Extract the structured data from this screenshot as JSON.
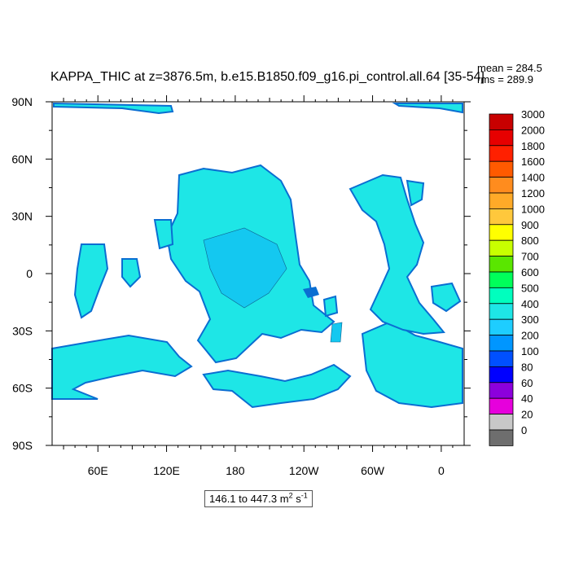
{
  "title": "KAPPA_THIC at z=3876.5m, b.e15.B1850.f09_g16.pi_control.all.64 [35-54]",
  "stats": {
    "mean": "mean = 284.5",
    "rms": "rms = 289.9"
  },
  "lat_labels": [
    "90N",
    "60N",
    "30N",
    "0",
    "30S",
    "60S",
    "90S"
  ],
  "lon_labels": [
    "60E",
    "120E",
    "180",
    "120W",
    "60W",
    "0"
  ],
  "colorbar": {
    "labels": [
      "3000",
      "2000",
      "1800",
      "1600",
      "1400",
      "1200",
      "1000",
      "900",
      "800",
      "700",
      "600",
      "500",
      "400",
      "300",
      "200",
      "100",
      "80",
      "60",
      "40",
      "20",
      "0"
    ],
    "colors": [
      "#c80000",
      "#e60000",
      "#ff2000",
      "#ff5a00",
      "#ff8c1e",
      "#ffaa28",
      "#ffc83c",
      "#ffff00",
      "#c8ff00",
      "#5ae600",
      "#00ff5a",
      "#00ffbe",
      "#1ee6e6",
      "#1ecdff",
      "#0096ff",
      "#0050ff",
      "#0000ff",
      "#8c00dc",
      "#e600dc",
      "#c8c8c8",
      "#6e6e6e"
    ]
  },
  "range_box": {
    "prefix": "146.1 to 447.3 m",
    "sup1": "2",
    "mid": " s",
    "sup2": "-1"
  },
  "map_colors": {
    "ocean_main": "#1ee6e6",
    "ocean_mid": "#14c8f0",
    "ocean_edge": "#0a6ed2",
    "land": "#ffffff"
  }
}
